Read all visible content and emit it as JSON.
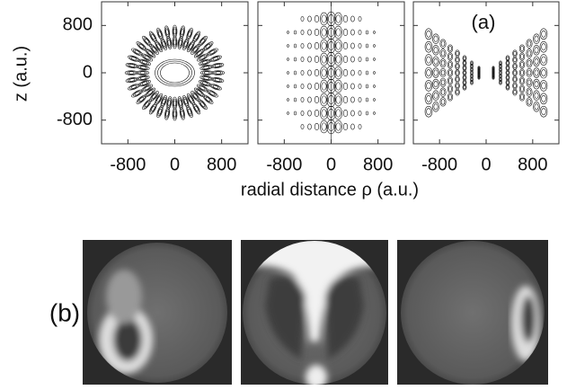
{
  "panel_a": {
    "label": "(a)",
    "y_label": "z (a.u.)",
    "x_label": "radial distance ρ  (a.u.)",
    "xlim": [
      -1250,
      1250
    ],
    "ylim": [
      -1200,
      1200
    ],
    "xticks": [
      -800,
      0,
      800
    ],
    "yticks": [
      -800,
      0,
      800
    ]
  },
  "panel_b": {
    "label": "(b)"
  }
}
